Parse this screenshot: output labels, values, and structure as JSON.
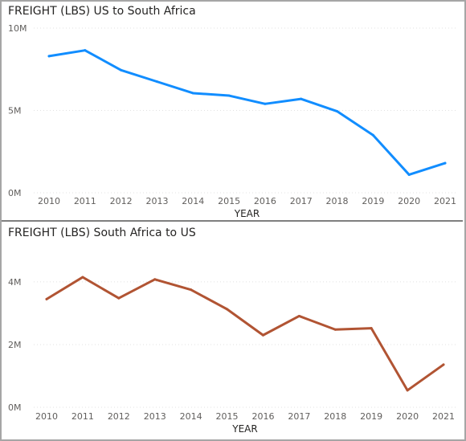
{
  "chart_data": [
    {
      "type": "line",
      "title": "FREIGHT (LBS) US to South Africa",
      "xlabel": "YEAR",
      "ylabel": "",
      "categories": [
        "2010",
        "2011",
        "2012",
        "2013",
        "2014",
        "2015",
        "2016",
        "2017",
        "2018",
        "2019",
        "2020",
        "2021"
      ],
      "series": [
        {
          "values": [
            8300000,
            8650000,
            7450000,
            6750000,
            6050000,
            5900000,
            5400000,
            5700000,
            4950000,
            3500000,
            1100000,
            1800000
          ],
          "color": "#118DFF"
        }
      ],
      "ylim": [
        0,
        10000000
      ],
      "yticks": [
        0,
        5000000,
        10000000
      ],
      "ytick_labels": [
        "0M",
        "5M",
        "10M"
      ],
      "grid": true
    },
    {
      "type": "line",
      "title": "FREIGHT (LBS) South Africa to US",
      "xlabel": "YEAR",
      "ylabel": "",
      "categories": [
        "2010",
        "2011",
        "2012",
        "2013",
        "2014",
        "2015",
        "2016",
        "2017",
        "2018",
        "2019",
        "2020",
        "2021"
      ],
      "series": [
        {
          "values": [
            3450000,
            4150000,
            3480000,
            4080000,
            3750000,
            3130000,
            2300000,
            2910000,
            2480000,
            2520000,
            540000,
            1360000
          ],
          "color": "#B15433"
        }
      ],
      "ylim": [
        0,
        5100000
      ],
      "yticks": [
        0,
        2000000,
        4000000
      ],
      "ytick_labels": [
        "0M",
        "2M",
        "4M"
      ],
      "grid": true
    }
  ]
}
